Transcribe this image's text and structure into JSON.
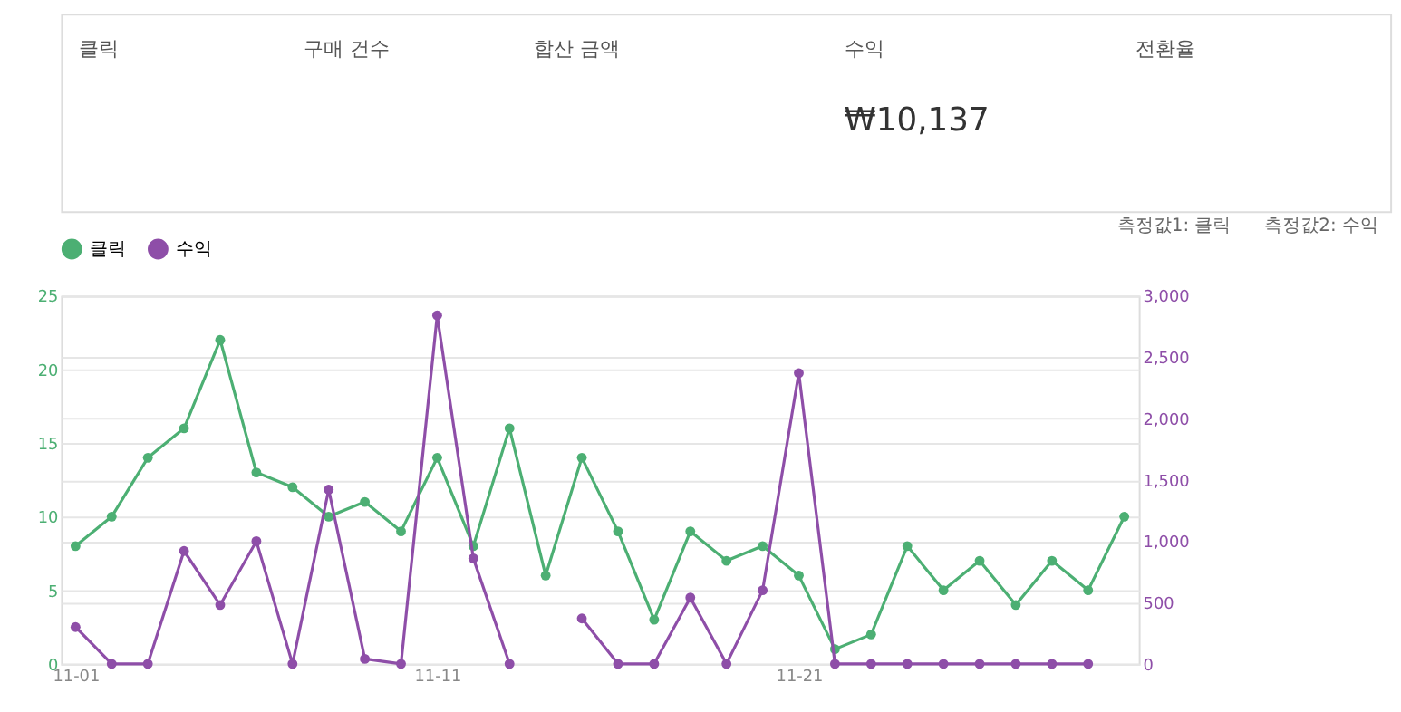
{
  "chart_data": {
    "type": "line",
    "annotations": [
      "클릭",
      "구매 건수",
      "합산 금액",
      "수익",
      "₩10,137",
      "전환율",
      "측정값1: 클릭",
      "측정값2: 수익"
    ],
    "categories": [
      "11-01",
      null,
      null,
      null,
      null,
      null,
      null,
      null,
      null,
      null,
      "11-11",
      null,
      null,
      null,
      null,
      null,
      null,
      null,
      null,
      null,
      "11-21",
      null,
      null,
      null,
      null,
      null,
      null,
      null,
      null,
      null
    ],
    "series": [
      {
        "name": "클릭",
        "color": "#4caf73",
        "values": [
          8,
          10,
          14,
          16,
          22,
          13,
          12,
          10,
          11,
          9,
          14,
          8,
          16,
          6,
          14,
          9,
          3,
          9,
          7,
          8,
          6,
          1,
          2,
          8,
          5,
          7,
          4,
          7,
          5,
          10
        ]
      },
      {
        "name": "수익",
        "color": "#8e4ea8",
        "axis": "y2",
        "values": [
          300,
          0,
          0,
          920,
          480,
          1000,
          0,
          1420,
          40,
          0,
          2840,
          860,
          0,
          null,
          370,
          0,
          0,
          540,
          0,
          600,
          2370,
          0,
          0,
          0,
          0,
          0,
          0,
          0,
          0,
          null
        ]
      }
    ],
    "ylim": [
      0,
      25
    ],
    "yticks": [
      0,
      5,
      10,
      15,
      20,
      25
    ],
    "y2lim": [
      0,
      3000
    ],
    "y2ticks": [
      0,
      500,
      {
        "value": 1000,
        "label": "1,000"
      },
      {
        "value": 1500,
        "label": "1,500"
      },
      {
        "value": 2000,
        "label": "2,000"
      },
      {
        "value": 2500,
        "label": "2,500"
      },
      {
        "value": 3000,
        "label": "3,000"
      }
    ],
    "grid": "y",
    "legend": "top",
    "marker": "circle",
    "line_style": "solid"
  }
}
